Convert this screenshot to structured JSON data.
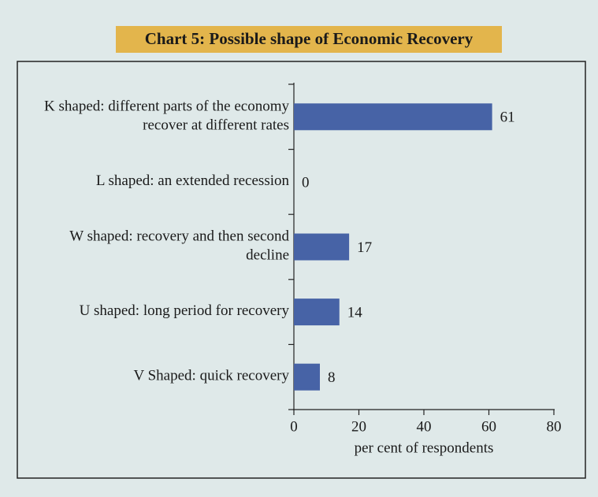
{
  "chart_data": {
    "type": "hbar",
    "title": "Chart 5: Possible shape of Economic Recovery",
    "categories": [
      "K shaped: different parts of the economy recover at different rates",
      "L shaped: an extended recession",
      "W shaped: recovery and then second decline",
      "U shaped: long period for recovery",
      "V Shaped: quick recovery"
    ],
    "values": [
      61,
      0,
      17,
      14,
      8
    ],
    "color": "#4763a6",
    "xlim": [
      0,
      80
    ],
    "xticks": [
      0,
      20,
      40,
      60,
      80
    ],
    "xlabel": "per cent of respondents"
  }
}
